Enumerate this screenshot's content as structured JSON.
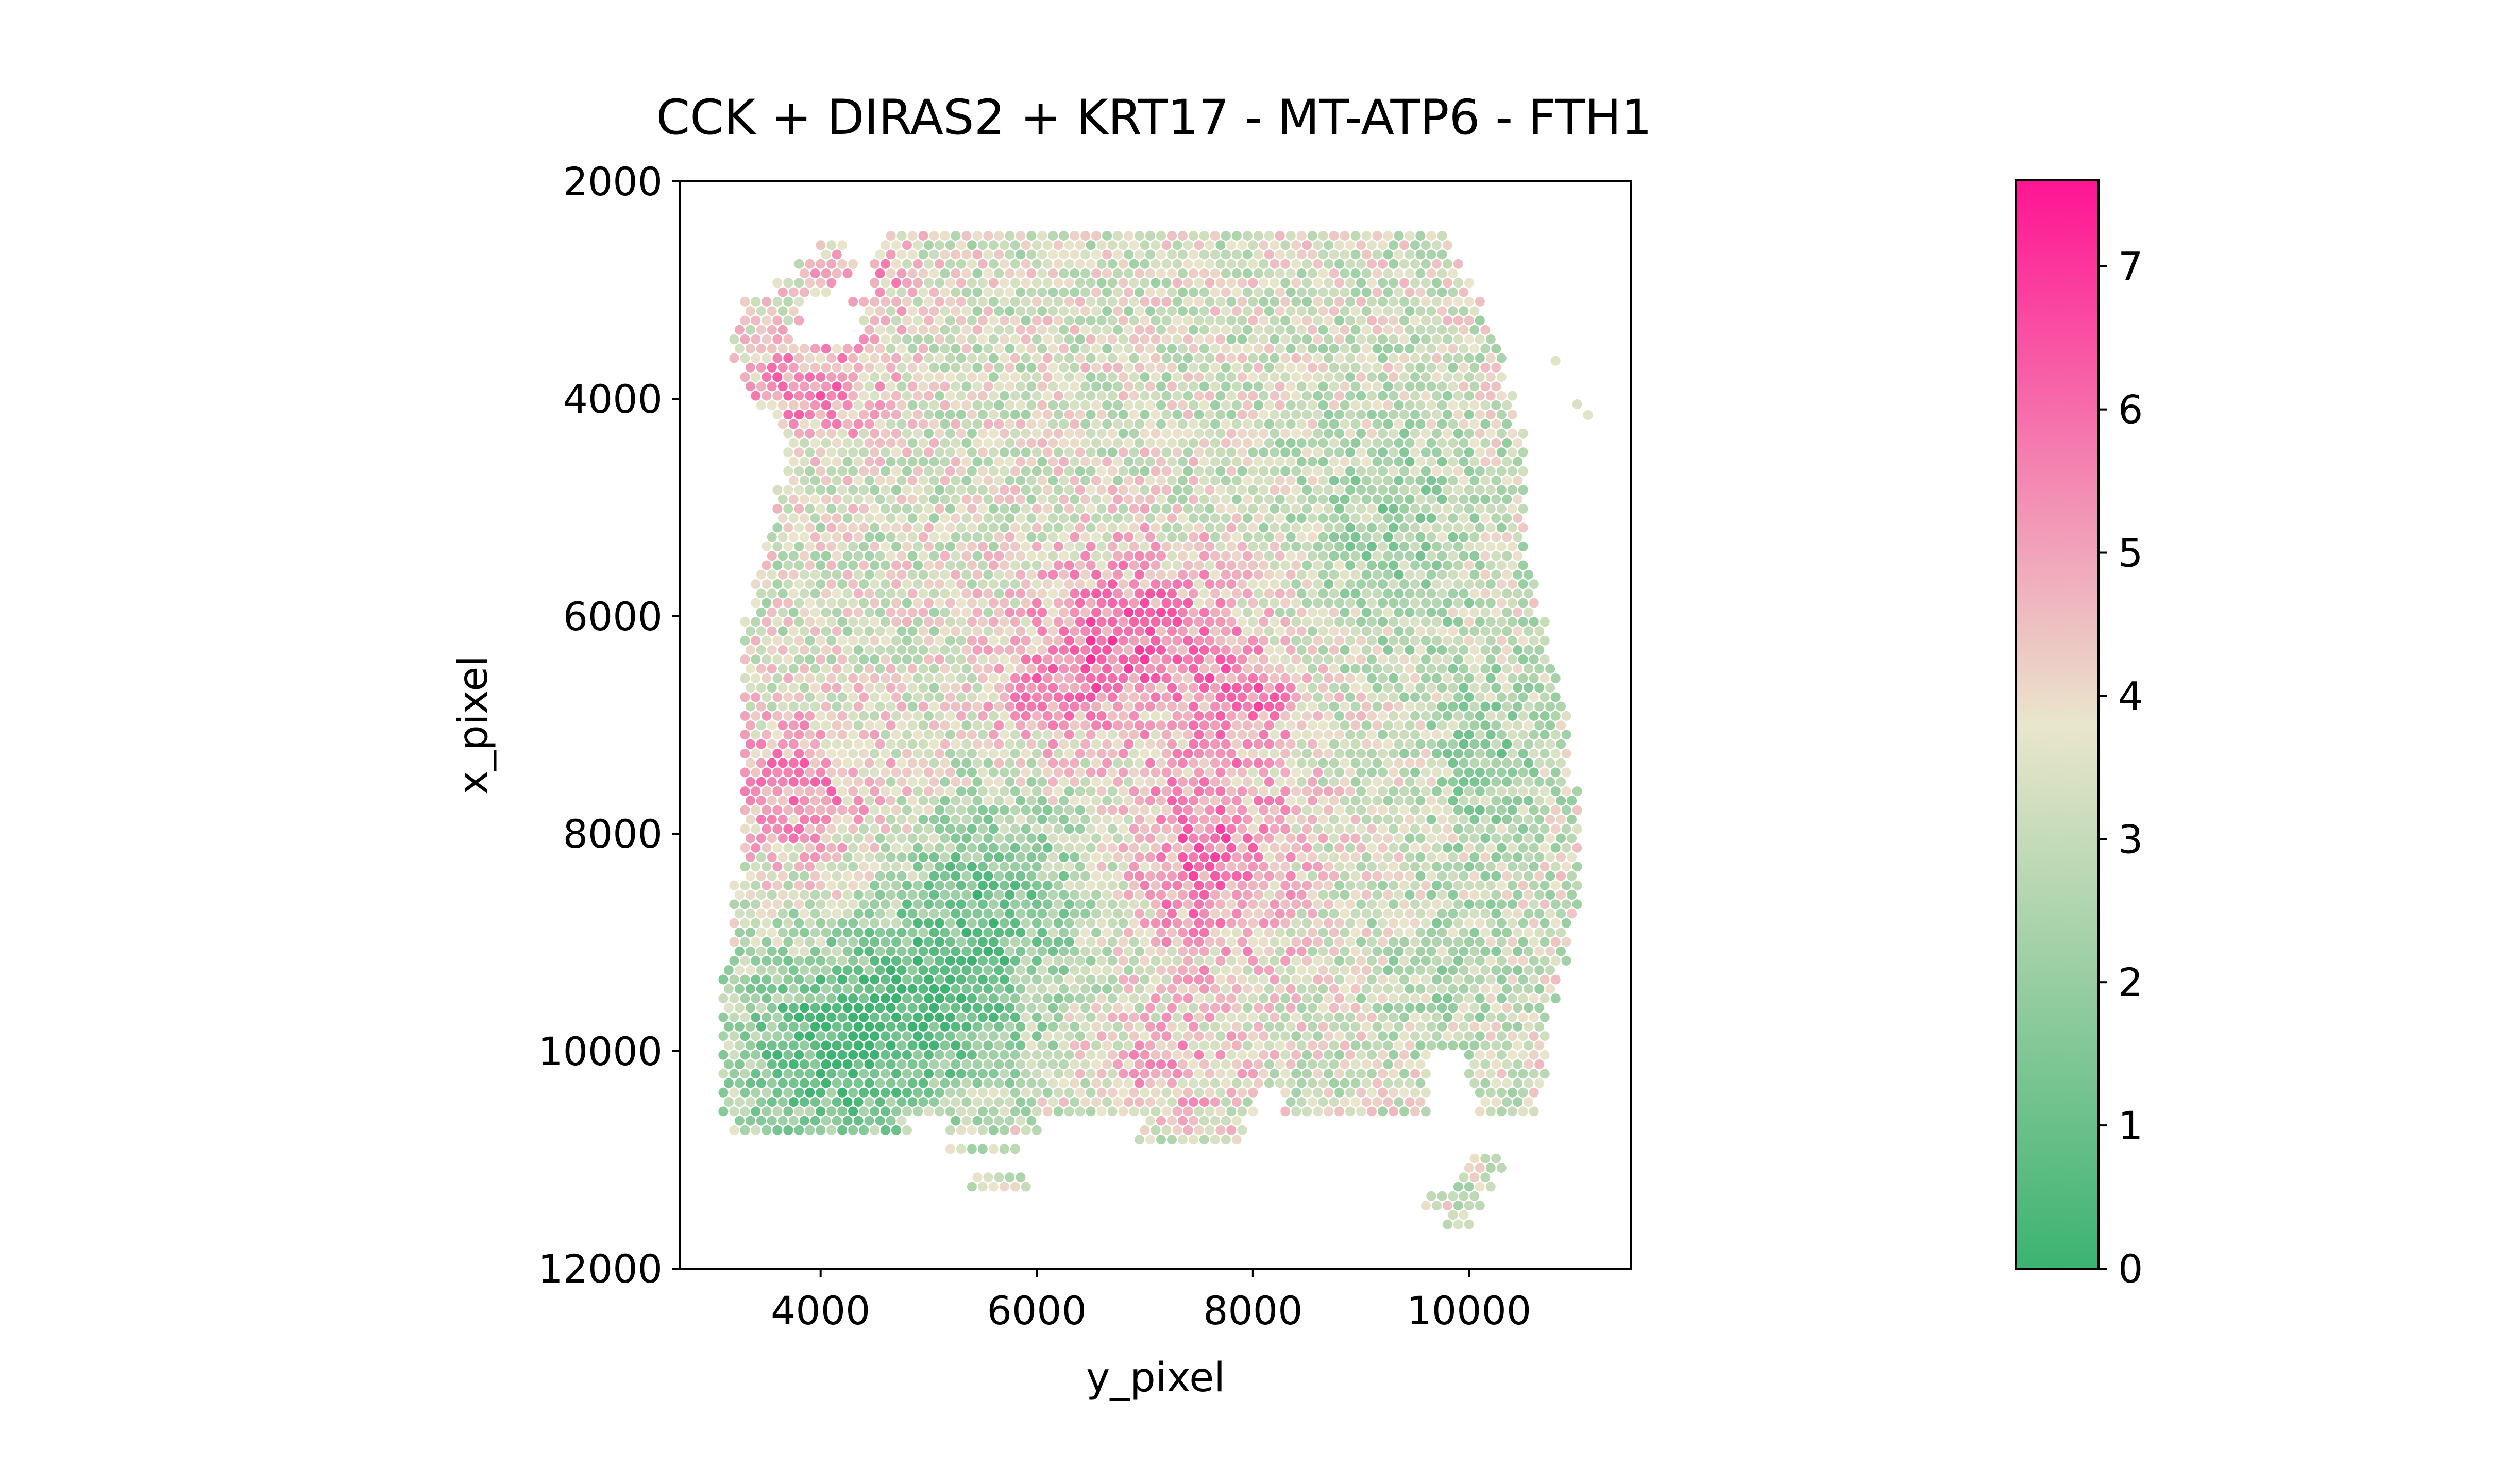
{
  "chart_data": {
    "type": "scatter",
    "title": "CCK + DIRAS2 + KRT17 - MT-ATP6 - FTH1",
    "xlabel": "y_pixel",
    "ylabel": "x_pixel",
    "xlim": [
      2700,
      11500
    ],
    "ylim": [
      12000,
      2000
    ],
    "y_inverted": true,
    "xticks": [
      4000,
      6000,
      8000,
      10000
    ],
    "xtick_labels": [
      "4000",
      "6000",
      "8000",
      "10000"
    ],
    "yticks": [
      2000,
      4000,
      6000,
      8000,
      10000,
      12000
    ],
    "ytick_labels": [
      "2000",
      "4000",
      "6000",
      "8000",
      "10000",
      "12000"
    ],
    "grid": false,
    "colorbar": {
      "range": [
        0,
        7.6
      ],
      "ticks": [
        0,
        1,
        2,
        3,
        4,
        5,
        6,
        7
      ],
      "tick_labels": [
        "0",
        "1",
        "2",
        "3",
        "4",
        "5",
        "6",
        "7"
      ],
      "colors": [
        "#3cb371",
        "#eae6cc",
        "#ff1493"
      ]
    },
    "tissue_rows": [
      {
        "y": 2500,
        "ranges": [
          [
            4570,
            9770
          ]
        ]
      },
      {
        "y": 2600,
        "ranges": [
          [
            4000,
            4200
          ],
          [
            4400,
            9800
          ]
        ]
      },
      {
        "y": 2800,
        "ranges": [
          [
            3800,
            4300
          ],
          [
            4500,
            9900
          ]
        ]
      },
      {
        "y": 3000,
        "ranges": [
          [
            3600,
            4100
          ],
          [
            4500,
            10000
          ]
        ]
      },
      {
        "y": 3200,
        "ranges": [
          [
            3300,
            3800
          ],
          [
            4300,
            10100
          ]
        ]
      },
      {
        "y": 3400,
        "ranges": [
          [
            3200,
            3700
          ],
          [
            4100,
            10200
          ]
        ]
      },
      {
        "y": 3600,
        "ranges": [
          [
            3200,
            10300
          ]
        ]
      },
      {
        "y": 3800,
        "ranges": [
          [
            3300,
            10300
          ]
        ]
      },
      {
        "y": 4000,
        "ranges": [
          [
            3400,
            10400
          ]
        ]
      },
      {
        "y": 4200,
        "ranges": [
          [
            3600,
            10400
          ]
        ]
      },
      {
        "y": 4400,
        "ranges": [
          [
            3700,
            10500
          ]
        ]
      },
      {
        "y": 4600,
        "ranges": [
          [
            3700,
            10500
          ]
        ]
      },
      {
        "y": 5000,
        "ranges": [
          [
            3600,
            10500
          ]
        ]
      },
      {
        "y": 5400,
        "ranges": [
          [
            3500,
            10500
          ]
        ]
      },
      {
        "y": 5800,
        "ranges": [
          [
            3400,
            10600
          ]
        ]
      },
      {
        "y": 6200,
        "ranges": [
          [
            3300,
            10700
          ]
        ]
      },
      {
        "y": 6600,
        "ranges": [
          [
            3300,
            10800
          ]
        ]
      },
      {
        "y": 7000,
        "ranges": [
          [
            3300,
            10900
          ]
        ]
      },
      {
        "y": 7400,
        "ranges": [
          [
            3300,
            10900
          ]
        ]
      },
      {
        "y": 7800,
        "ranges": [
          [
            3300,
            11000
          ]
        ]
      },
      {
        "y": 8200,
        "ranges": [
          [
            3300,
            11000
          ]
        ]
      },
      {
        "y": 8600,
        "ranges": [
          [
            3200,
            11000
          ]
        ]
      },
      {
        "y": 9000,
        "ranges": [
          [
            3200,
            10900
          ]
        ]
      },
      {
        "y": 9400,
        "ranges": [
          [
            3100,
            10800
          ]
        ]
      },
      {
        "y": 9800,
        "ranges": [
          [
            3100,
            10700
          ]
        ]
      },
      {
        "y": 10200,
        "ranges": [
          [
            3100,
            9600
          ],
          [
            10000,
            10700
          ]
        ]
      },
      {
        "y": 10500,
        "ranges": [
          [
            3100,
            8000
          ],
          [
            8300,
            9600
          ],
          [
            10100,
            10600
          ]
        ]
      },
      {
        "y": 10700,
        "ranges": [
          [
            3200,
            4800
          ],
          [
            5200,
            6000
          ],
          [
            7000,
            7900
          ]
        ]
      },
      {
        "y": 10850,
        "ranges": [
          [
            6900,
            7900
          ]
        ]
      },
      {
        "y": 10900,
        "ranges": [
          [
            5200,
            5800
          ]
        ]
      },
      {
        "y": 11000,
        "ranges": [
          [
            10000,
            10300
          ]
        ]
      },
      {
        "y": 11200,
        "ranges": [
          [
            5400,
            5900
          ],
          [
            9900,
            10200
          ]
        ]
      },
      {
        "y": 11350,
        "ranges": [
          [
            9600,
            10100
          ]
        ]
      },
      {
        "y": 11550,
        "ranges": [
          [
            9800,
            10000
          ]
        ]
      }
    ],
    "tissue_holes": [
      {
        "x": [
          4300,
          4500
        ],
        "y": [
          2400,
          2700
        ]
      },
      {
        "x": [
          3900,
          4350
        ],
        "y": [
          3150,
          3500
        ]
      }
    ],
    "outlier_spots": [
      {
        "x": 10800,
        "y": 3650,
        "value": 3.6
      },
      {
        "x": 11000,
        "y": 4050,
        "value": 3.4
      },
      {
        "x": 11100,
        "y": 4150,
        "value": 3.6
      }
    ],
    "value_regions": [
      {
        "cx": 3900,
        "cy": 3900,
        "rx": 700,
        "ry": 500,
        "delta": 2.3
      },
      {
        "cx": 4400,
        "cy": 2900,
        "rx": 500,
        "ry": 400,
        "delta": 1.6
      },
      {
        "cx": 3800,
        "cy": 7600,
        "rx": 800,
        "ry": 700,
        "delta": 2.0
      },
      {
        "cx": 6900,
        "cy": 6100,
        "rx": 1000,
        "ry": 800,
        "delta": 2.2
      },
      {
        "cx": 6200,
        "cy": 6700,
        "rx": 700,
        "ry": 600,
        "delta": 1.4
      },
      {
        "cx": 7600,
        "cy": 8200,
        "rx": 800,
        "ry": 1100,
        "delta": 2.4
      },
      {
        "cx": 8000,
        "cy": 6700,
        "rx": 500,
        "ry": 500,
        "delta": 1.6
      },
      {
        "cx": 7200,
        "cy": 10200,
        "rx": 700,
        "ry": 500,
        "delta": 1.3
      },
      {
        "cx": 4200,
        "cy": 10000,
        "rx": 1100,
        "ry": 900,
        "delta": -2.6
      },
      {
        "cx": 5600,
        "cy": 8500,
        "rx": 900,
        "ry": 800,
        "delta": -2.0
      },
      {
        "cx": 5100,
        "cy": 9500,
        "rx": 1000,
        "ry": 700,
        "delta": -1.6
      },
      {
        "cx": 9300,
        "cy": 5200,
        "rx": 900,
        "ry": 1100,
        "delta": -1.2
      },
      {
        "cx": 10200,
        "cy": 7300,
        "rx": 600,
        "ry": 900,
        "delta": -1.3
      },
      {
        "cx": 9800,
        "cy": 9200,
        "rx": 700,
        "ry": 700,
        "delta": -0.9
      }
    ],
    "base_value": 3.4
  }
}
